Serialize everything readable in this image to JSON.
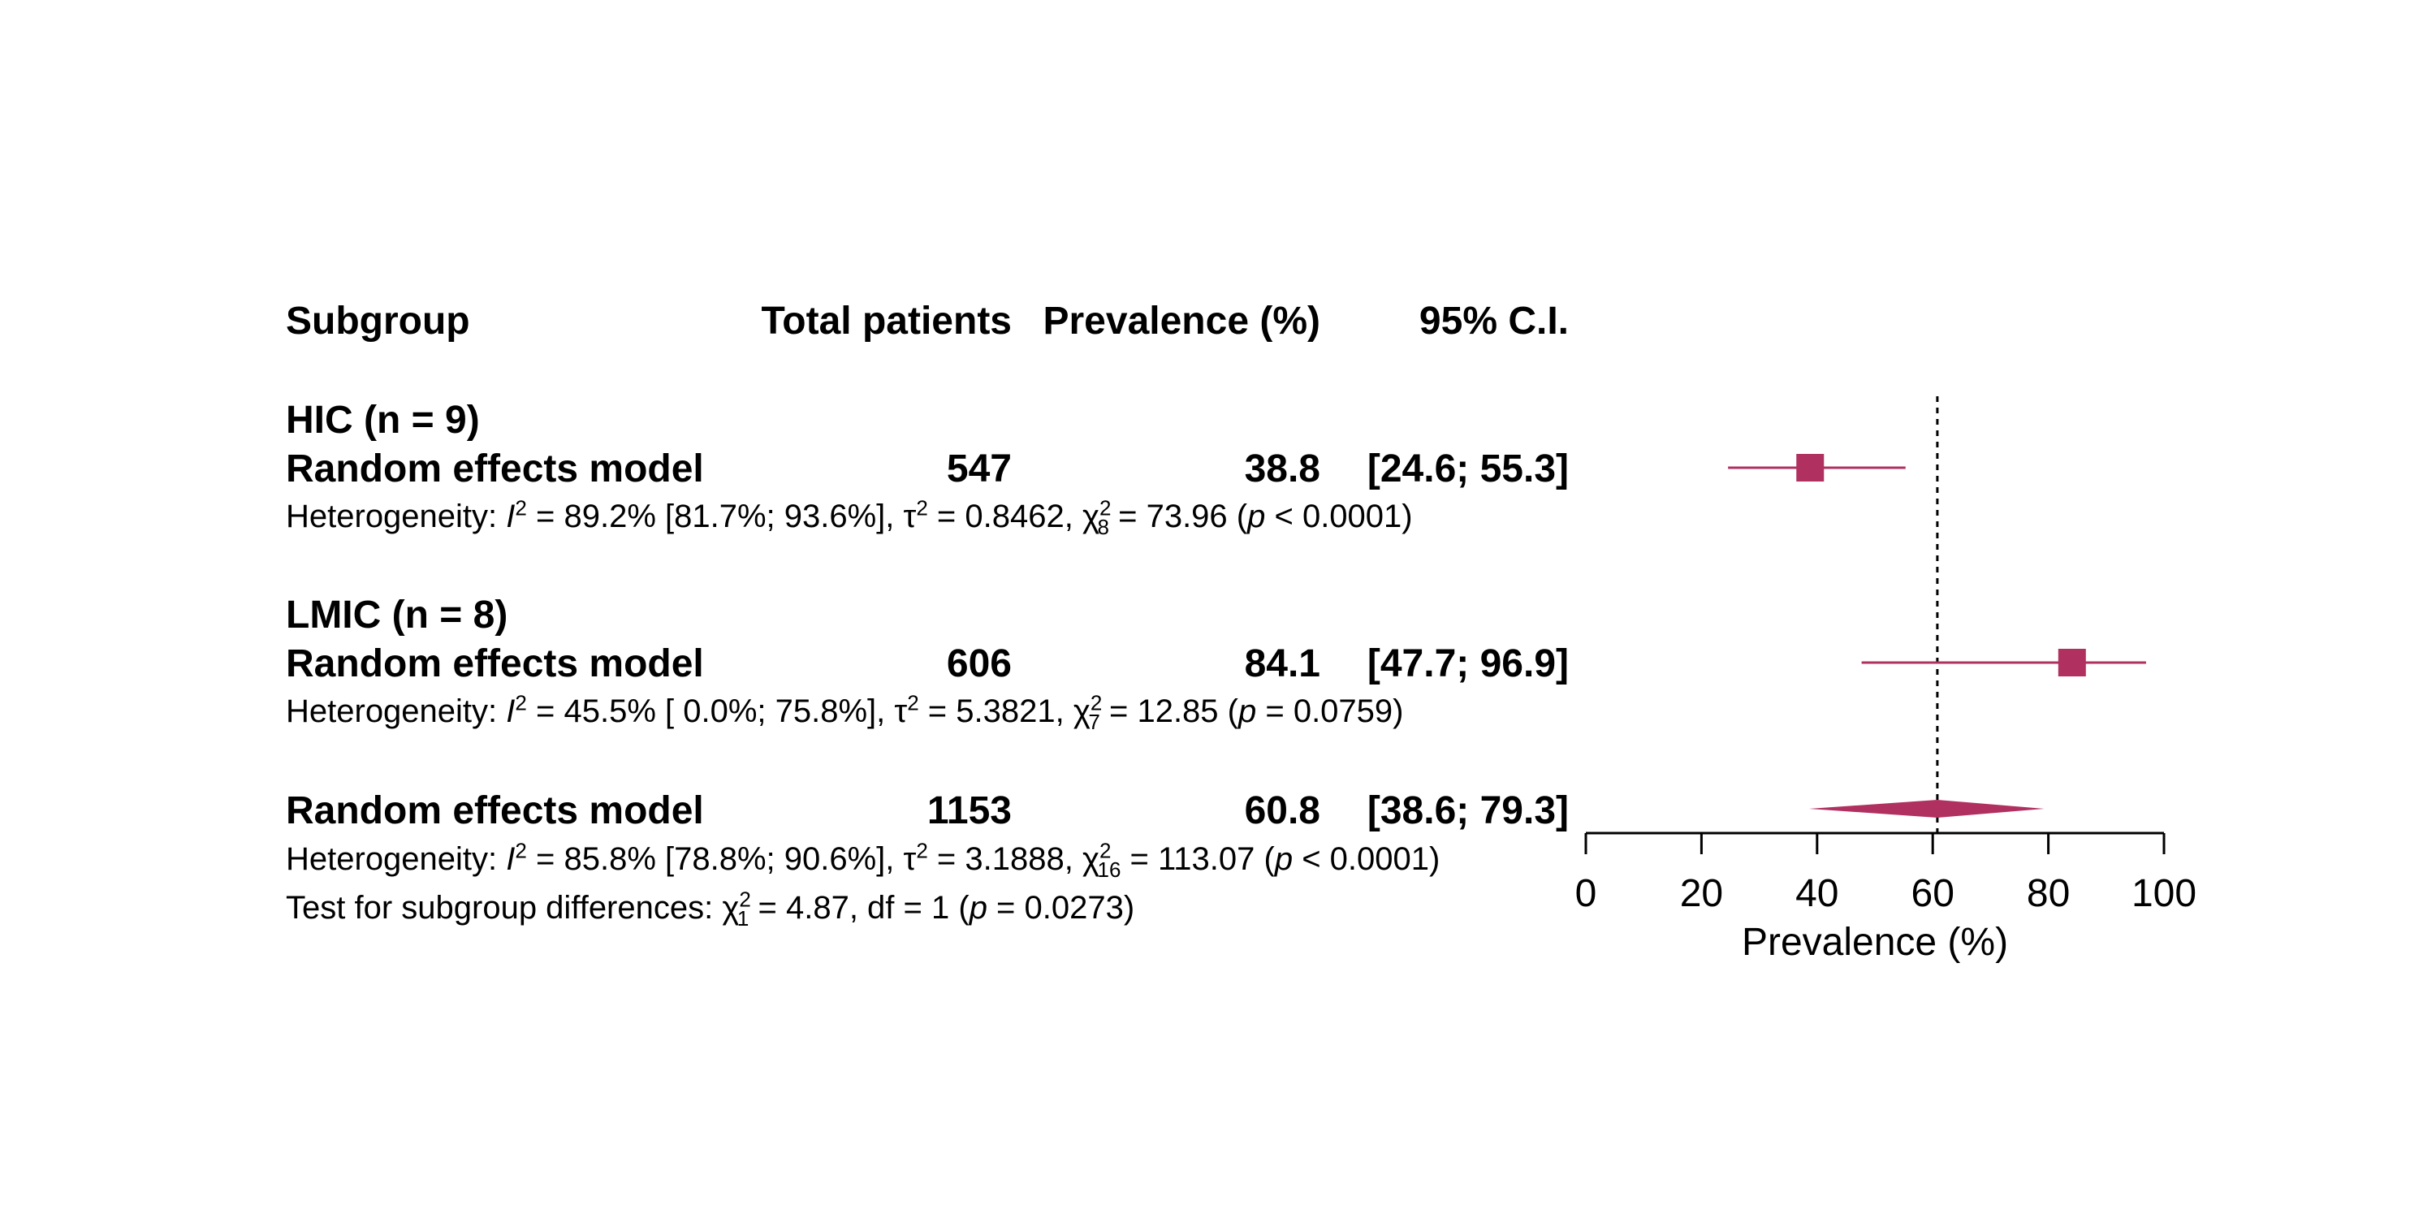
{
  "header": {
    "subgroup": "Subgroup",
    "total_patients": "Total patients",
    "prevalence": "Prevalence (%)",
    "ci": "95% C.I."
  },
  "groups": [
    {
      "title": "HIC (n = 9)",
      "model_label": "Random effects model",
      "total": "547",
      "prevalence": "38.8",
      "ci": "[24.6;  55.3]",
      "het_prefix": "Heterogeneity: ",
      "het_i2": "I",
      "het_i2_rest": " = 89.2% [81.7%; 93.6%], τ",
      "het_tau_rest": " = 0.8462, χ",
      "het_df": "8",
      "het_chi_rest": " = 73.96 (",
      "het_p": "p",
      "het_p_rest": " < 0.0001)"
    },
    {
      "title": "LMIC (n = 8)",
      "model_label": "Random effects model",
      "total": "606",
      "prevalence": "84.1",
      "ci": "[47.7;  96.9]",
      "het_prefix": "Heterogeneity: ",
      "het_i2": "I",
      "het_i2_rest": " = 45.5% [ 0.0%; 75.8%], τ",
      "het_tau_rest": " = 5.3821, χ",
      "het_df": "7",
      "het_chi_rest": " = 12.85 (",
      "het_p": "p",
      "het_p_rest": " = 0.0759)"
    }
  ],
  "overall": {
    "model_label": "Random effects model",
    "total": "1153",
    "prevalence": "60.8",
    "ci": "[38.6;  79.3]",
    "het_prefix": "Heterogeneity: ",
    "het_i2": "I",
    "het_i2_rest": " = 85.8% [78.8%; 90.6%], τ",
    "het_tau_rest": " = 3.1888, χ",
    "het_df": "16",
    "het_chi_rest": " = 113.07 (",
    "het_p": "p",
    "het_p_rest": " < 0.0001)",
    "test_prefix": "Test for subgroup differences: χ",
    "test_df": "1",
    "test_rest": " = 4.87, df = 1 (",
    "test_p": "p",
    "test_p_rest": " = 0.0273)"
  },
  "sup2": "2",
  "chart_data": {
    "type": "forest",
    "xlabel": "Prevalence (%)",
    "xlim": [
      0,
      100
    ],
    "xticks": [
      0,
      20,
      40,
      60,
      80,
      100
    ],
    "reference_line": 60.8,
    "color": "#b03060",
    "subgroups": [
      {
        "name": "HIC (n = 9)",
        "estimate": 38.8,
        "lower": 24.6,
        "upper": 55.3
      },
      {
        "name": "LMIC (n = 8)",
        "estimate": 84.1,
        "lower": 47.7,
        "upper": 96.9
      }
    ],
    "overall": {
      "estimate": 60.8,
      "lower": 38.6,
      "upper": 79.3
    }
  }
}
